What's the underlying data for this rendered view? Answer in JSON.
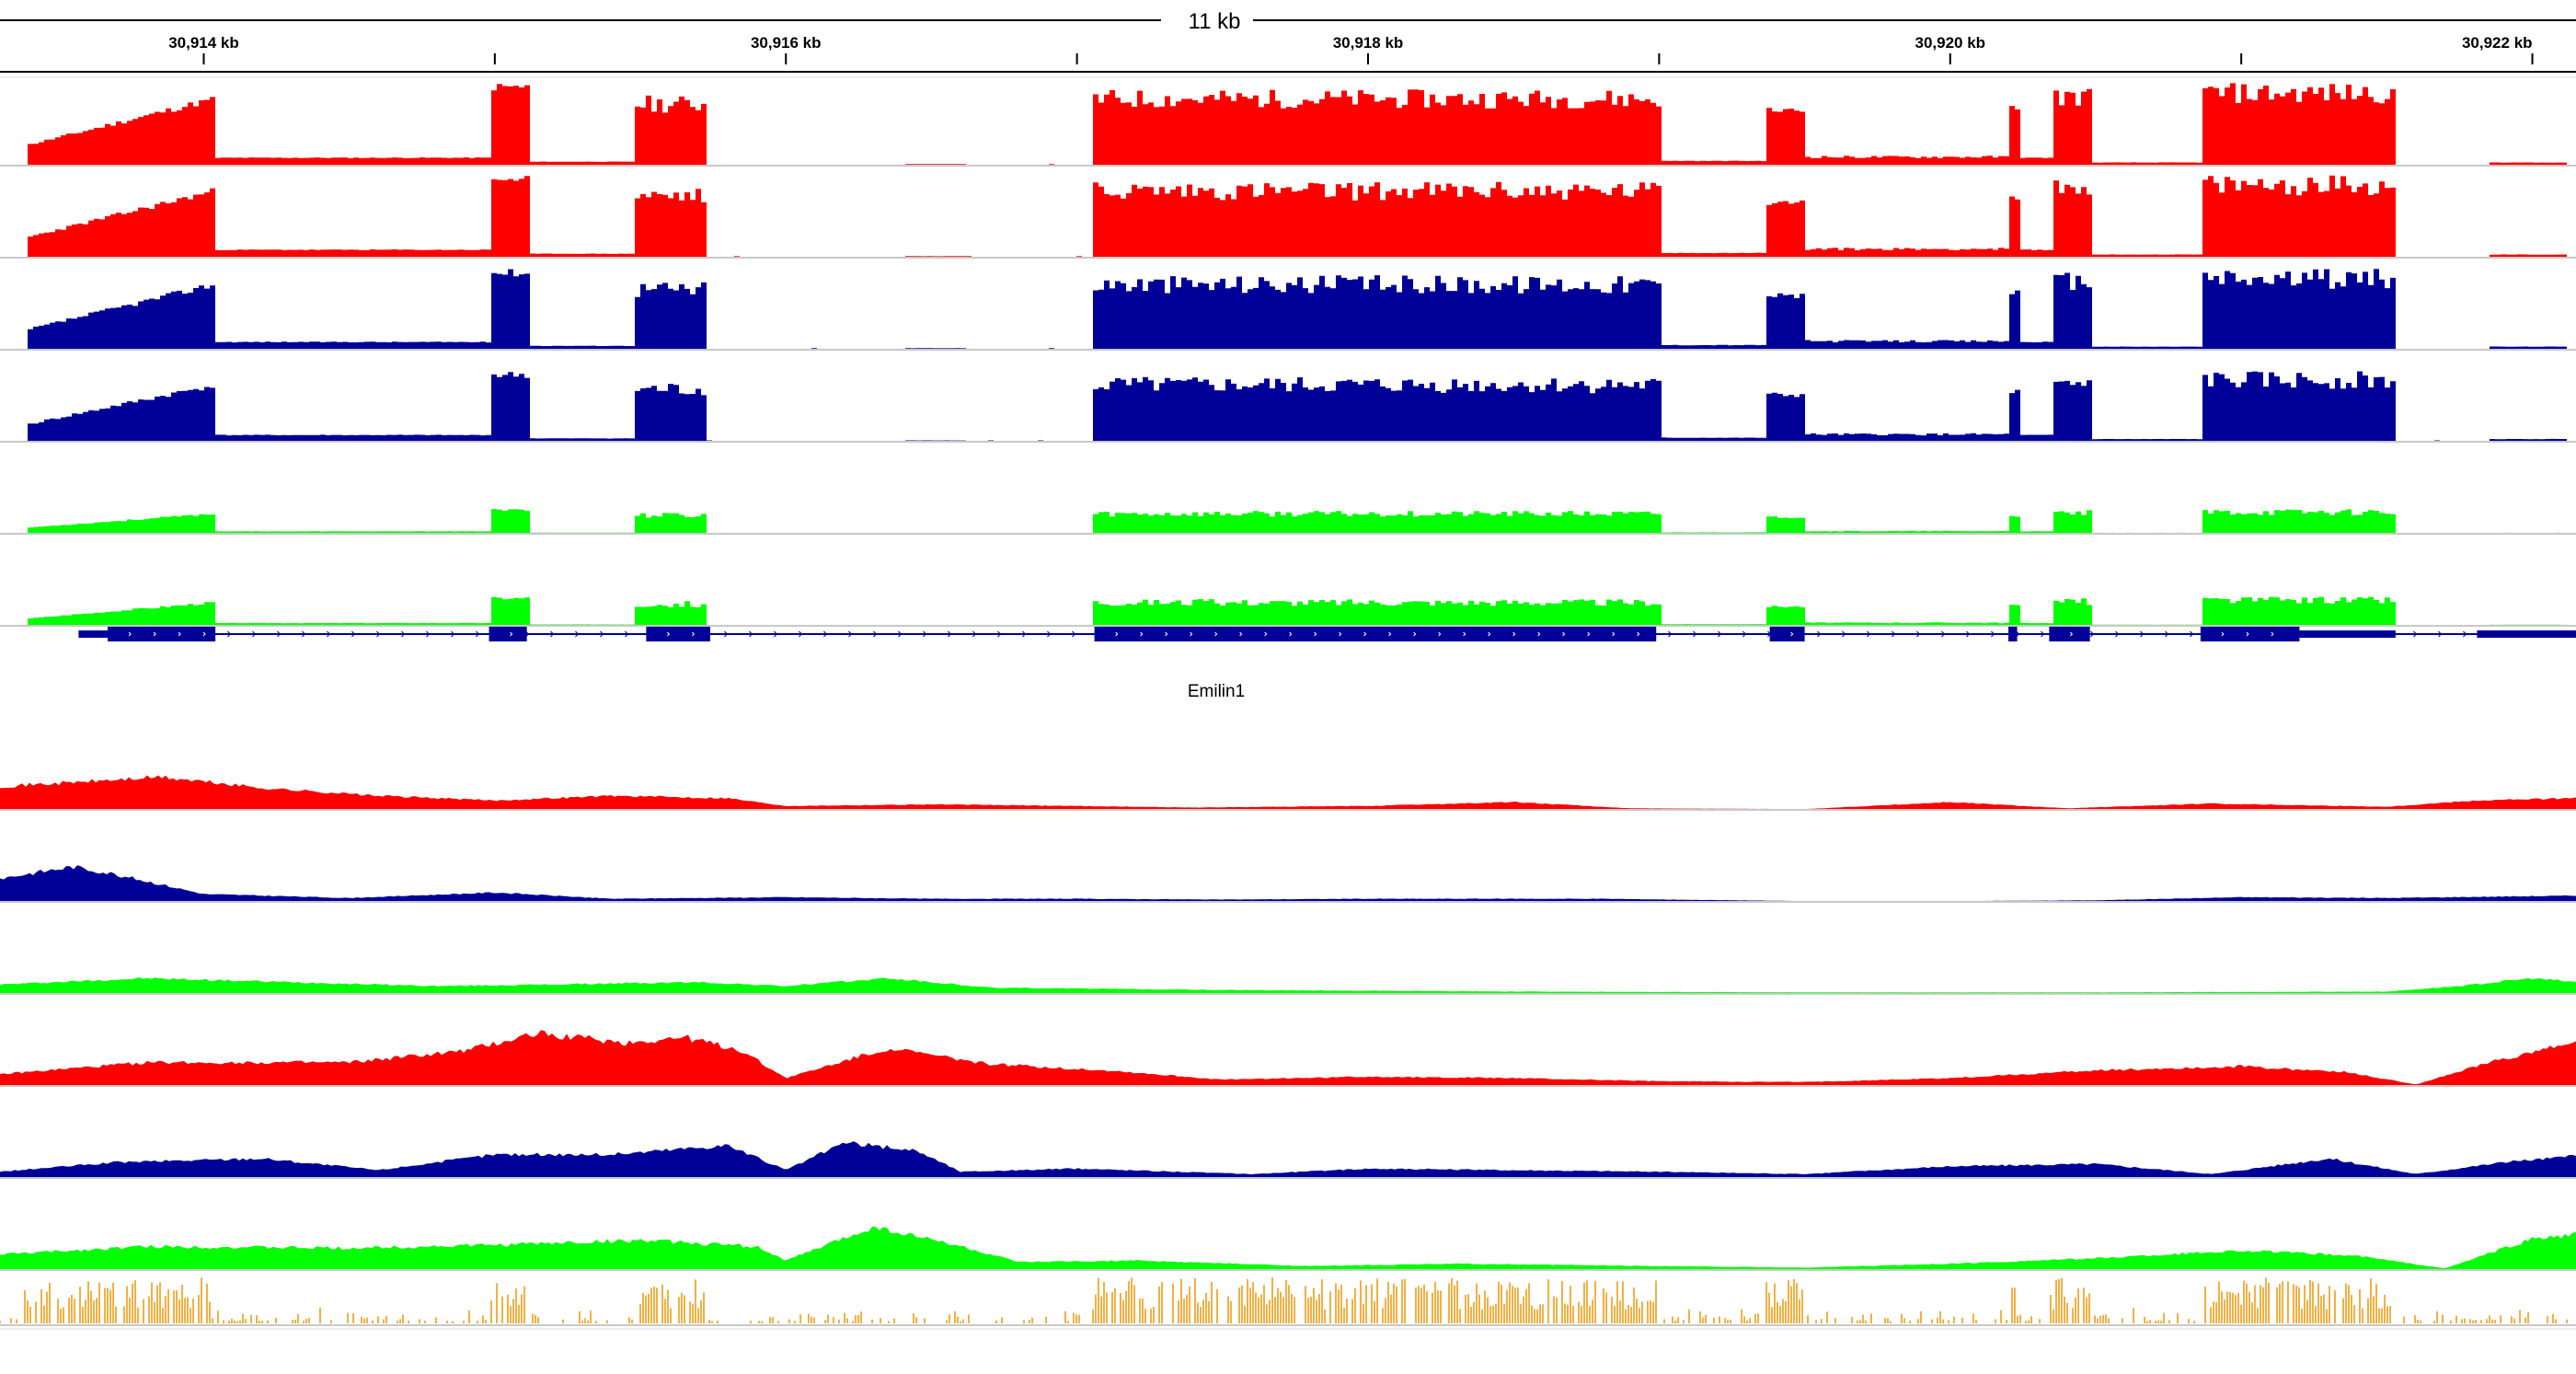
{
  "ruler": {
    "span_label": "11 kb",
    "start_kb": 30913.3,
    "end_kb": 30922.15,
    "tick_labels": [
      {
        "kb": 30914,
        "text": "30,914 kb"
      },
      {
        "kb": 30916,
        "text": "30,916 kb"
      },
      {
        "kb": 30918,
        "text": "30,918 kb"
      },
      {
        "kb": 30920,
        "text": "30,920 kb"
      },
      {
        "kb": 30922,
        "text": "30,922 kb"
      }
    ],
    "minor_ticks_kb": [
      30915,
      30917,
      30919,
      30921
    ]
  },
  "colors": {
    "red": "#ff0000",
    "blue": "#000099",
    "green": "#00ff00",
    "orange": "#f4b042",
    "gene": "#000099",
    "separator": "#c8c8c8"
  },
  "gene": {
    "name": "Emilin1",
    "strand": "+",
    "intron_kb": [
      30913.57,
      30922.15
    ],
    "exons_kb": [
      [
        30913.57,
        30913.67,
        "utr"
      ],
      [
        30913.67,
        30914.04,
        "cds"
      ],
      [
        30914.98,
        30915.11,
        "cds"
      ],
      [
        30915.52,
        30915.74,
        "cds"
      ],
      [
        30917.06,
        30918.99,
        "cds"
      ],
      [
        30919.38,
        30919.5,
        "cds"
      ],
      [
        30920.2,
        30920.23,
        "cds"
      ],
      [
        30920.34,
        30920.48,
        "cds"
      ],
      [
        30920.86,
        30921.2,
        "cds"
      ],
      [
        30921.2,
        30921.53,
        "utr"
      ],
      [
        30921.81,
        30922.2,
        "utr"
      ],
      [
        30922.2,
        30922.3,
        "cds"
      ]
    ]
  },
  "rnaseq_regions_kb": [
    {
      "start": 30913.38,
      "end": 30914.03,
      "level": 0.85,
      "profile": "ramp"
    },
    {
      "start": 30914.03,
      "end": 30914.98,
      "level": 0.1,
      "profile": "flat"
    },
    {
      "start": 30914.98,
      "end": 30915.11,
      "level": 1.0,
      "profile": "flat"
    },
    {
      "start": 30915.11,
      "end": 30915.48,
      "level": 0.05,
      "profile": "flat"
    },
    {
      "start": 30915.48,
      "end": 30915.72,
      "level": 0.85,
      "profile": "bumpy"
    },
    {
      "start": 30916.4,
      "end": 30916.6,
      "level": 0.02,
      "profile": "flat"
    },
    {
      "start": 30917.05,
      "end": 30918.99,
      "level": 0.92,
      "profile": "bumpy"
    },
    {
      "start": 30918.99,
      "end": 30919.36,
      "level": 0.06,
      "profile": "flat"
    },
    {
      "start": 30919.36,
      "end": 30919.5,
      "level": 0.7,
      "profile": "flat"
    },
    {
      "start": 30919.5,
      "end": 30920.2,
      "level": 0.12,
      "profile": "bumpy"
    },
    {
      "start": 30920.2,
      "end": 30920.23,
      "level": 0.75,
      "profile": "flat"
    },
    {
      "start": 30920.23,
      "end": 30920.34,
      "level": 0.1,
      "profile": "flat"
    },
    {
      "start": 30920.34,
      "end": 30920.48,
      "level": 0.95,
      "profile": "bumpy"
    },
    {
      "start": 30920.48,
      "end": 30920.86,
      "level": 0.04,
      "profile": "flat"
    },
    {
      "start": 30920.86,
      "end": 30921.52,
      "level": 1.0,
      "profile": "bumpy"
    },
    {
      "start": 30921.85,
      "end": 30922.1,
      "level": 0.04,
      "profile": "flat"
    }
  ],
  "tracks": [
    {
      "kind": "rnaseq",
      "color": "red",
      "scale": 1.0,
      "seed": 11
    },
    {
      "kind": "rnaseq",
      "color": "red",
      "scale": 1.0,
      "seed": 23
    },
    {
      "kind": "rnaseq",
      "color": "blue",
      "scale": 0.98,
      "seed": 37
    },
    {
      "kind": "rnaseq",
      "color": "blue",
      "scale": 0.85,
      "seed": 41
    },
    {
      "kind": "rnaseq",
      "color": "green",
      "scale": 0.3,
      "seed": 53
    },
    {
      "kind": "rnaseq",
      "color": "green",
      "scale": 0.35,
      "seed": 67
    },
    {
      "kind": "gene"
    },
    {
      "kind": "smooth",
      "color": "red",
      "seed": 71,
      "profile": [
        [
          30913.3,
          0.3
        ],
        [
          30913.55,
          0.35
        ],
        [
          30913.85,
          0.42
        ],
        [
          30914.2,
          0.28
        ],
        [
          30914.6,
          0.18
        ],
        [
          30915.0,
          0.12
        ],
        [
          30915.4,
          0.18
        ],
        [
          30915.8,
          0.15
        ],
        [
          30916.0,
          0.05
        ],
        [
          30916.5,
          0.07
        ],
        [
          30917.0,
          0.05
        ],
        [
          30917.4,
          0.03
        ],
        [
          30918.0,
          0.05
        ],
        [
          30918.5,
          0.1
        ],
        [
          30918.9,
          0.02
        ],
        [
          30919.5,
          0.01
        ],
        [
          30920.0,
          0.1
        ],
        [
          30920.4,
          0.02
        ],
        [
          30920.9,
          0.08
        ],
        [
          30921.5,
          0.04
        ],
        [
          30921.8,
          0.12
        ],
        [
          30922.15,
          0.15
        ]
      ]
    },
    {
      "kind": "smooth",
      "color": "blue",
      "seed": 83,
      "profile": [
        [
          30913.3,
          0.3
        ],
        [
          30913.55,
          0.45
        ],
        [
          30913.7,
          0.35
        ],
        [
          30914.0,
          0.1
        ],
        [
          30914.5,
          0.05
        ],
        [
          30915.0,
          0.12
        ],
        [
          30915.4,
          0.04
        ],
        [
          30916.0,
          0.06
        ],
        [
          30916.5,
          0.04
        ],
        [
          30917.0,
          0.04
        ],
        [
          30917.5,
          0.03
        ],
        [
          30918.0,
          0.04
        ],
        [
          30918.8,
          0.04
        ],
        [
          30919.5,
          0.01
        ],
        [
          30920.0,
          0.01
        ],
        [
          30920.5,
          0.02
        ],
        [
          30921.0,
          0.06
        ],
        [
          30921.5,
          0.05
        ],
        [
          30922.15,
          0.08
        ]
      ]
    },
    {
      "kind": "smooth",
      "color": "green",
      "seed": 97,
      "profile": [
        [
          30913.3,
          0.12
        ],
        [
          30913.8,
          0.2
        ],
        [
          30914.3,
          0.15
        ],
        [
          30914.8,
          0.1
        ],
        [
          30915.2,
          0.12
        ],
        [
          30915.7,
          0.15
        ],
        [
          30916.0,
          0.1
        ],
        [
          30916.35,
          0.2
        ],
        [
          30916.7,
          0.08
        ],
        [
          30917.5,
          0.05
        ],
        [
          30918.5,
          0.03
        ],
        [
          30919.5,
          0.02
        ],
        [
          30920.5,
          0.02
        ],
        [
          30921.5,
          0.03
        ],
        [
          30921.75,
          0.1
        ],
        [
          30922.0,
          0.2
        ],
        [
          30922.15,
          0.15
        ]
      ]
    },
    {
      "kind": "smooth",
      "color": "red",
      "seed": 109,
      "profile": [
        [
          30913.3,
          0.15
        ],
        [
          30913.8,
          0.3
        ],
        [
          30914.5,
          0.3
        ],
        [
          30914.9,
          0.45
        ],
        [
          30915.15,
          0.68
        ],
        [
          30915.45,
          0.55
        ],
        [
          30915.65,
          0.62
        ],
        [
          30915.85,
          0.45
        ],
        [
          30916.0,
          0.1
        ],
        [
          30916.35,
          0.48
        ],
        [
          30916.7,
          0.28
        ],
        [
          30917.1,
          0.2
        ],
        [
          30917.5,
          0.08
        ],
        [
          30918.0,
          0.12
        ],
        [
          30918.5,
          0.1
        ],
        [
          30919.0,
          0.06
        ],
        [
          30919.5,
          0.05
        ],
        [
          30920.0,
          0.1
        ],
        [
          30920.5,
          0.2
        ],
        [
          30921.0,
          0.25
        ],
        [
          30921.35,
          0.18
        ],
        [
          30921.6,
          0.02
        ],
        [
          30921.9,
          0.35
        ],
        [
          30922.15,
          0.55
        ]
      ]
    },
    {
      "kind": "smooth",
      "color": "blue",
      "seed": 127,
      "profile": [
        [
          30913.3,
          0.08
        ],
        [
          30913.7,
          0.2
        ],
        [
          30914.2,
          0.25
        ],
        [
          30914.6,
          0.1
        ],
        [
          30915.0,
          0.3
        ],
        [
          30915.4,
          0.3
        ],
        [
          30915.8,
          0.42
        ],
        [
          30916.0,
          0.1
        ],
        [
          30916.2,
          0.45
        ],
        [
          30916.45,
          0.35
        ],
        [
          30916.6,
          0.08
        ],
        [
          30917.0,
          0.12
        ],
        [
          30917.6,
          0.05
        ],
        [
          30918.0,
          0.12
        ],
        [
          30918.5,
          0.1
        ],
        [
          30919.0,
          0.08
        ],
        [
          30919.5,
          0.05
        ],
        [
          30920.0,
          0.15
        ],
        [
          30920.5,
          0.18
        ],
        [
          30920.9,
          0.05
        ],
        [
          30921.3,
          0.25
        ],
        [
          30921.6,
          0.05
        ],
        [
          30921.9,
          0.2
        ],
        [
          30922.15,
          0.28
        ]
      ]
    },
    {
      "kind": "smooth",
      "color": "green",
      "seed": 131,
      "profile": [
        [
          30913.3,
          0.2
        ],
        [
          30913.8,
          0.3
        ],
        [
          30914.5,
          0.28
        ],
        [
          30915.0,
          0.32
        ],
        [
          30915.5,
          0.38
        ],
        [
          30915.9,
          0.3
        ],
        [
          30916.0,
          0.12
        ],
        [
          30916.3,
          0.55
        ],
        [
          30916.55,
          0.35
        ],
        [
          30916.8,
          0.1
        ],
        [
          30917.2,
          0.12
        ],
        [
          30917.8,
          0.05
        ],
        [
          30918.3,
          0.08
        ],
        [
          30919.0,
          0.05
        ],
        [
          30919.5,
          0.03
        ],
        [
          30920.0,
          0.08
        ],
        [
          30920.5,
          0.15
        ],
        [
          30921.0,
          0.25
        ],
        [
          30921.4,
          0.18
        ],
        [
          30921.7,
          0.02
        ],
        [
          30922.0,
          0.4
        ],
        [
          30922.15,
          0.45
        ]
      ]
    },
    {
      "kind": "spiky",
      "color": "orange",
      "seed": 149
    }
  ]
}
